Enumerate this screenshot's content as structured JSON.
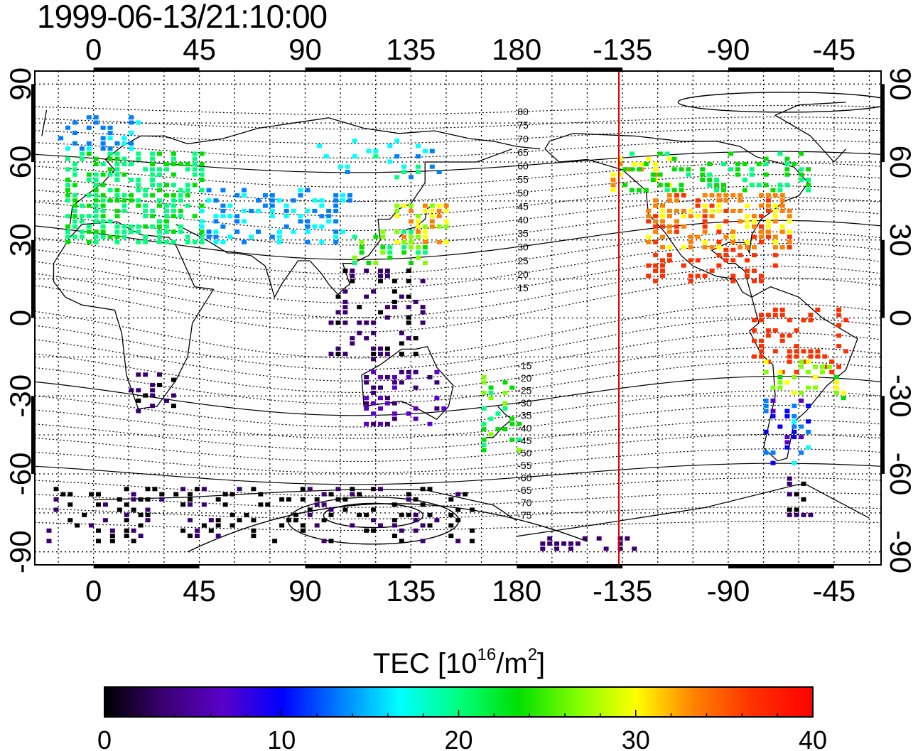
{
  "title": "1999-06-13/21:10:00",
  "map": {
    "lon_ticks_top": [
      "0",
      "45",
      "90",
      "135",
      "180",
      "-135",
      "-90",
      "-45"
    ],
    "lon_ticks_bottom": [
      "0",
      "45",
      "90",
      "135",
      "180",
      "-135",
      "-90",
      "-45"
    ],
    "lat_ticks": [
      "90",
      "60",
      "30",
      "0",
      "-30",
      "-60",
      "-90"
    ],
    "magnetic_lat_labels": [
      "80",
      "75",
      "70",
      "65",
      "60",
      "55",
      "50",
      "45",
      "40",
      "35",
      "30",
      "25",
      "20",
      "15",
      "-15",
      "-20",
      "-25",
      "-30",
      "-35",
      "-40",
      "-45",
      "-50",
      "-55",
      "-60",
      "-65",
      "-70",
      "-75"
    ],
    "highlight_meridian": {
      "label": "local noon / red meridian",
      "color": "#e00000"
    },
    "grid": "dotted",
    "lon_range": [
      -25,
      335
    ],
    "lat_range": [
      -95,
      95
    ]
  },
  "colorbar": {
    "label_main": "TEC  [10",
    "label_exp1": "16",
    "label_mid": "/m",
    "label_exp2": "2",
    "label_end": "]",
    "min": 0,
    "max": 40,
    "ticks": [
      "0",
      "10",
      "20",
      "30",
      "40"
    ],
    "colors": [
      "#000000",
      "#3a0070",
      "#5a00c8",
      "#0000ff",
      "#0080ff",
      "#00ffff",
      "#00ff80",
      "#00e000",
      "#80ff00",
      "#ffff00",
      "#ff8000",
      "#ff3000",
      "#ff0000"
    ]
  }
}
